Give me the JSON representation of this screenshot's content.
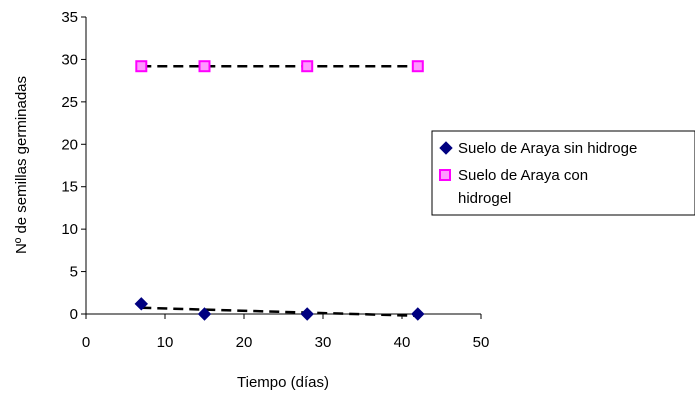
{
  "chart_data": {
    "type": "scatter",
    "title": "",
    "xlabel": "Tiempo (días)",
    "ylabel": "Nº de semillas germinadas",
    "xlim": [
      0,
      50
    ],
    "ylim": [
      0,
      35
    ],
    "x_ticks": [
      "0",
      "10",
      "20",
      "30",
      "40",
      "50"
    ],
    "y_ticks": [
      "0",
      "5",
      "10",
      "15",
      "20",
      "25",
      "30",
      "35"
    ],
    "grid": false,
    "legend_position": "right",
    "series": [
      {
        "name": "Suelo de Araya sin hidrogel",
        "legend_label": "Suelo de Araya sin hidroge",
        "marker": "diamond",
        "color": "#000080",
        "x": [
          7,
          15,
          28,
          42
        ],
        "y": [
          1.2,
          0,
          0,
          0
        ],
        "trendline": {
          "type": "linear",
          "style": "dashed",
          "color": "#000000"
        }
      },
      {
        "name": "Suelo de Araya con hidrogel",
        "legend_label_lines": [
          "Suelo de Araya con",
          "hidrogel"
        ],
        "marker": "square",
        "color": "#ff00ff",
        "x": [
          7,
          15,
          28,
          42
        ],
        "y": [
          29.2,
          29.2,
          29.2,
          29.2
        ],
        "trendline": {
          "type": "linear",
          "style": "dashed",
          "color": "#000000"
        }
      }
    ]
  }
}
